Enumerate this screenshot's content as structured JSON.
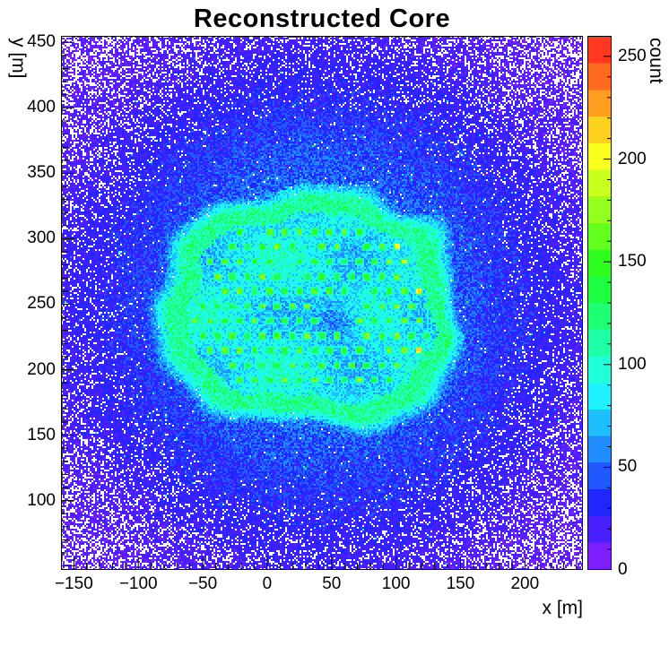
{
  "chart_data": {
    "type": "heatmap",
    "title": "Reconstructed Core",
    "xlabel": "x [m]",
    "ylabel": "y [m]",
    "zlabel": "count",
    "xlim": [
      -160,
      245
    ],
    "ylim": [
      47,
      455
    ],
    "zlim": [
      0,
      260
    ],
    "x_tick_values": [
      -150,
      -100,
      -50,
      0,
      50,
      100,
      150,
      200
    ],
    "x_tick_labels": [
      "−150",
      "−100",
      "−50",
      "0",
      "50",
      "100",
      "150",
      "200"
    ],
    "y_tick_values": [
      100,
      150,
      200,
      250,
      300,
      350,
      400,
      450
    ],
    "y_tick_labels": [
      "100",
      "150",
      "200",
      "250",
      "300",
      "350",
      "400",
      "450"
    ],
    "z_tick_values": [
      0,
      50,
      100,
      150,
      200,
      250
    ],
    "z_tick_labels": [
      "0",
      "50",
      "100",
      "150",
      "200",
      "250"
    ],
    "grid": false,
    "legend_position": "right-colorbar",
    "palette": {
      "name": "root-rainbow",
      "levels": 20,
      "hue_start": 272,
      "hue_end": 0,
      "saturation": 0.88,
      "empty_bin_color": "#ffffff"
    },
    "content": {
      "description": "2D histogram of reconstructed shower-core positions. Diffuse background of ~10-50 counts (violet/blue) falling off radially, with empty white bins increasingly frequent toward the edges. A bright rounded-square plateau of ~80-120 counts (cyan) spans x ≈ -65..135 m, y ≈ 170..325 m with a brighter noisy rim. Inside the plateau a hexagonal grid of detector-station hot spots (~150 counts, green; a few ~200-230, yellow/orange, near the right side) with a dot-free darker hole near (52, 243).",
      "background": {
        "center_x": 40,
        "center_y": 250,
        "peak_count": 55,
        "floor_count": 8,
        "sigma_m": 120,
        "empty_onset_m": 140,
        "empty_slope_m": 300,
        "empty_max_prob": 0.62
      },
      "plateau": {
        "center_x": 33,
        "center_y": 247,
        "half_width_m": 100,
        "half_height_m": 79,
        "corner_power": 3.2,
        "mean_count": 85,
        "rim_count": 108,
        "hole_x": 55,
        "hole_y": 238,
        "hole_depth": 38,
        "hole_sigma_m": 13
      },
      "station_grid": {
        "x_start": -56,
        "y_start": 192,
        "x_spacing_m": 11.6,
        "y_spacing_m": 11.3,
        "rows": 12,
        "cols": 16,
        "hex_offset": true,
        "dot_half_size_m": 1.8,
        "dot_count": 150,
        "hot_dot_count": 210,
        "hot_dot_min_x": 92,
        "hole_center_x": 52,
        "hole_center_y": 243,
        "hole_radius_m": 16
      }
    }
  }
}
